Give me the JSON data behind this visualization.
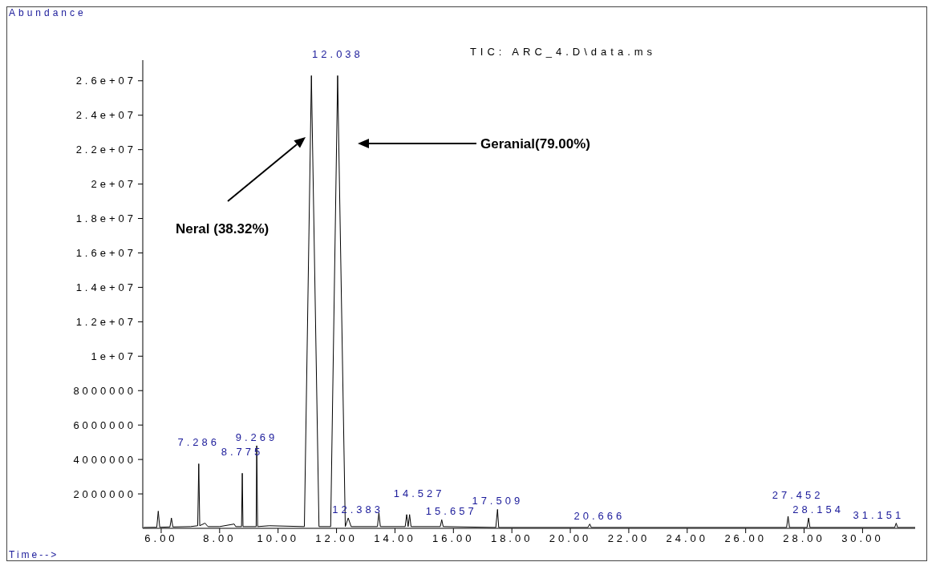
{
  "chart_data": {
    "type": "line",
    "title": "TIC: ARC_4.D\\data.ms",
    "ylabel": "Abundance",
    "xlabel": "Time-->",
    "xlim": [
      5.37,
      31.8
    ],
    "ylim": [
      0,
      27200000
    ],
    "xticks": [
      {
        "value": 6,
        "label": "6.00"
      },
      {
        "value": 8,
        "label": "8.00"
      },
      {
        "value": 10,
        "label": "10.00"
      },
      {
        "value": 12,
        "label": "12.00"
      },
      {
        "value": 14,
        "label": "14.00"
      },
      {
        "value": 16,
        "label": "16.00"
      },
      {
        "value": 18,
        "label": "18.00"
      },
      {
        "value": 20,
        "label": "20.00"
      },
      {
        "value": 22,
        "label": "22.00"
      },
      {
        "value": 24,
        "label": "24.00"
      },
      {
        "value": 26,
        "label": "26.00"
      },
      {
        "value": 28,
        "label": "28.00"
      },
      {
        "value": 30,
        "label": "30.00"
      }
    ],
    "yticks": [
      2000000,
      4000000,
      6000000,
      8000000,
      {
        "value": 10000000,
        "label": "1e+07"
      },
      {
        "value": 12000000,
        "label": "1.2e+07"
      },
      {
        "value": 14000000,
        "label": "1.4e+07"
      },
      {
        "value": 16000000,
        "label": "1.6e+07"
      },
      {
        "value": 18000000,
        "label": "1.8e+07"
      },
      {
        "value": 20000000,
        "label": "2e+07"
      },
      {
        "value": 22000000,
        "label": "2.2e+07"
      },
      {
        "value": 24000000,
        "label": "2.4e+07"
      },
      {
        "value": 26000000,
        "label": "2.6e+07"
      }
    ],
    "grid": false,
    "legend": false,
    "marker": "none",
    "line_style": "solid",
    "series": [
      {
        "color": "#000000",
        "x": [
          5.4,
          5.85,
          5.9,
          5.95,
          6.3,
          6.35,
          6.4,
          7.0,
          7.25,
          7.286,
          7.32,
          7.5,
          7.6,
          8.0,
          8.5,
          8.55,
          8.75,
          8.775,
          8.8,
          9.25,
          9.269,
          9.3,
          9.7,
          10.9,
          11.14,
          11.4,
          11.8,
          12.038,
          12.3,
          12.4,
          12.5,
          13.4,
          13.45,
          13.5,
          14.35,
          14.4,
          14.45,
          14.5,
          14.55,
          15.55,
          15.6,
          15.65,
          17.45,
          17.509,
          17.55,
          20.6,
          20.666,
          20.72,
          27.4,
          27.452,
          27.5,
          28.1,
          28.154,
          28.2,
          31.1,
          31.151,
          31.2,
          31.8
        ],
        "values": [
          50000,
          60000,
          1000000,
          60000,
          80000,
          600000,
          80000,
          100000,
          150000,
          3750000,
          150000,
          300000,
          100000,
          100000,
          250000,
          100000,
          100000,
          3200000,
          100000,
          100000,
          4800000,
          100000,
          150000,
          100000,
          26300000,
          100000,
          100000,
          26300000,
          100000,
          600000,
          100000,
          100000,
          900000,
          100000,
          100000,
          800000,
          100000,
          800000,
          100000,
          100000,
          500000,
          100000,
          50000,
          1100000,
          50000,
          50000,
          250000,
          50000,
          50000,
          700000,
          50000,
          50000,
          600000,
          50000,
          50000,
          300000,
          50000,
          50000
        ]
      }
    ],
    "annotations": [
      {
        "text": "7.286",
        "x": 7.286,
        "y": 3750000
      },
      {
        "text": "8.775",
        "x": 8.775,
        "y": 3200000
      },
      {
        "text": "9.269",
        "x": 9.269,
        "y": 4800000
      },
      {
        "text": "12.038",
        "x": 12.038,
        "y": 26300000
      },
      {
        "text": "12.383",
        "x": 12.4,
        "y": 600000
      },
      {
        "text": "14.527",
        "x": 14.5,
        "y": 800000
      },
      {
        "text": "15.657",
        "x": 15.6,
        "y": 500000
      },
      {
        "text": "17.509",
        "x": 17.509,
        "y": 1100000
      },
      {
        "text": "20.666",
        "x": 20.666,
        "y": 250000
      },
      {
        "text": "27.452",
        "x": 27.452,
        "y": 700000
      },
      {
        "text": "28.154",
        "x": 28.154,
        "y": 600000
      },
      {
        "text": "31.151",
        "x": 31.151,
        "y": 300000
      },
      "Neral (38.32%)",
      "Geranial(79.00%)"
    ]
  }
}
